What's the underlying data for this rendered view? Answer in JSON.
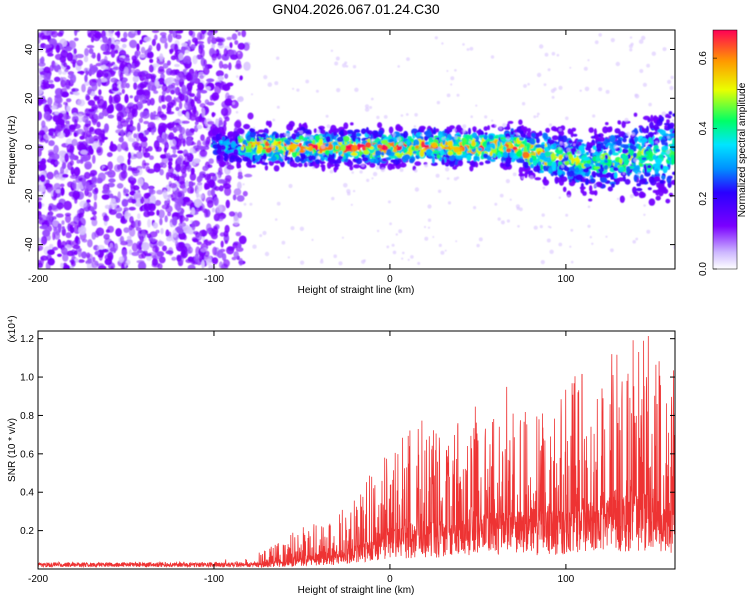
{
  "title": "GN04.2026.067.01.24.C30",
  "colors": {
    "snr_line": "#ee3333",
    "axis": "#000000",
    "colormap": [
      "#ffffff",
      "#dccbff",
      "#7a00ff",
      "#2a00ff",
      "#00aaff",
      "#00ffdd",
      "#33ff33",
      "#ffff00",
      "#ff9900",
      "#ff0055"
    ]
  },
  "chart_data": [
    {
      "type": "heatmap",
      "xlabel": "Height of straight line (km)",
      "ylabel": "Frequency (Hz)",
      "xlim": [
        -200,
        162
      ],
      "ylim": [
        -50,
        48
      ],
      "x_ticks": [
        -200,
        -100,
        0,
        100
      ],
      "y_ticks": [
        -40,
        -20,
        0,
        20,
        40
      ],
      "colorbar": {
        "label": "Normalized spectral amplitude",
        "range": [
          0,
          0.68
        ],
        "ticks": [
          "0.0",
          "0.2",
          "0.4",
          "0.6"
        ]
      },
      "regions": [
        {
          "x_range": [
            -200,
            -78
          ],
          "freq_range": [
            -50,
            48
          ],
          "amplitude": 0.05
        },
        {
          "x_range": [
            -100,
            162
          ],
          "freq_center": 0,
          "freq_halfwidth": 6,
          "amplitude_range": [
            0.2,
            0.68
          ]
        }
      ]
    },
    {
      "type": "line",
      "xlabel": "Height of straight line (km)",
      "ylabel": "SNR (10 * v/v)",
      "y_multiplier": "(x10⁴)",
      "xlim": [
        -200,
        162
      ],
      "ylim": [
        0,
        1.24
      ],
      "x_ticks": [
        -200,
        -100,
        0,
        100
      ],
      "y_ticks": [
        "0.2",
        "0.4",
        "0.6",
        "0.8",
        "1.0",
        "1.2"
      ],
      "envelope": [
        {
          "x": -200,
          "y": 0.03
        },
        {
          "x": -90,
          "y": 0.04
        },
        {
          "x": -70,
          "y": 0.1
        },
        {
          "x": -50,
          "y": 0.22
        },
        {
          "x": -30,
          "y": 0.28
        },
        {
          "x": -10,
          "y": 0.5
        },
        {
          "x": 0,
          "y": 0.68
        },
        {
          "x": 30,
          "y": 0.8
        },
        {
          "x": 60,
          "y": 0.9
        },
        {
          "x": 100,
          "y": 1.0
        },
        {
          "x": 140,
          "y": 1.24
        },
        {
          "x": 162,
          "y": 1.1
        }
      ]
    }
  ]
}
